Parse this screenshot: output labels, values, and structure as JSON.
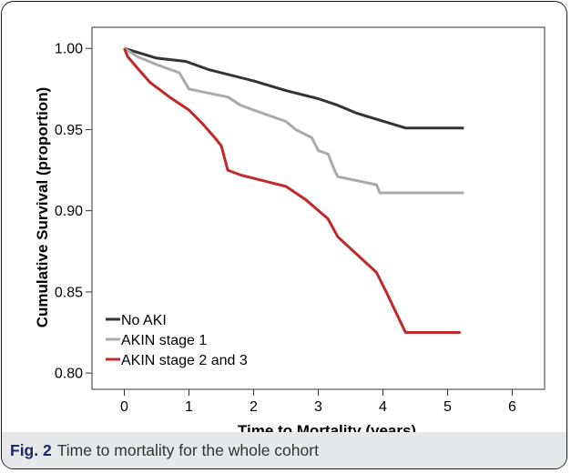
{
  "caption": {
    "label": "Fig. 2",
    "text": "Time to mortality for the whole cohort"
  },
  "chart_data": {
    "type": "line",
    "step": true,
    "xlabel": "Time to Mortality (years)",
    "ylabel": "Cumulative Survival (proportion)",
    "xlim": [
      -0.5,
      6.5
    ],
    "ylim": [
      0.79,
      1.013
    ],
    "xticks": [
      0,
      1,
      2,
      3,
      4,
      5,
      6
    ],
    "xtick_labels": [
      "0",
      "1",
      "2",
      "3",
      "4",
      "5",
      "6"
    ],
    "yticks": [
      0.8,
      0.85,
      0.9,
      0.95,
      1.0
    ],
    "ytick_labels": [
      "0.80",
      "0.85",
      "0.90",
      "0.95",
      "1.00"
    ],
    "grid": false,
    "legend_position": "bottom-left",
    "series": [
      {
        "name": "No AKI",
        "color": "#333333",
        "points": [
          [
            0,
            1.0
          ],
          [
            0.25,
            0.997
          ],
          [
            0.5,
            0.994
          ],
          [
            0.95,
            0.992
          ],
          [
            1.3,
            0.987
          ],
          [
            2.0,
            0.98
          ],
          [
            2.5,
            0.974
          ],
          [
            3.0,
            0.969
          ],
          [
            3.3,
            0.965
          ],
          [
            3.6,
            0.96
          ],
          [
            4.35,
            0.951
          ],
          [
            5.25,
            0.951
          ]
        ]
      },
      {
        "name": "AKIN stage 1",
        "color": "#aaaaaa",
        "points": [
          [
            0,
            1.0
          ],
          [
            0.2,
            0.995
          ],
          [
            0.5,
            0.99
          ],
          [
            0.85,
            0.985
          ],
          [
            1.0,
            0.975
          ],
          [
            1.6,
            0.97
          ],
          [
            1.8,
            0.965
          ],
          [
            2.0,
            0.962
          ],
          [
            2.5,
            0.955
          ],
          [
            2.65,
            0.95
          ],
          [
            2.9,
            0.945
          ],
          [
            3.0,
            0.937
          ],
          [
            3.15,
            0.935
          ],
          [
            3.25,
            0.925
          ],
          [
            3.3,
            0.921
          ],
          [
            3.9,
            0.916
          ],
          [
            3.95,
            0.911
          ],
          [
            5.25,
            0.911
          ]
        ]
      },
      {
        "name": "AKIN stage 2 and 3",
        "color": "#c0282a",
        "points": [
          [
            0,
            1.0
          ],
          [
            0.05,
            0.995
          ],
          [
            0.2,
            0.988
          ],
          [
            0.4,
            0.979
          ],
          [
            0.7,
            0.97
          ],
          [
            1.0,
            0.962
          ],
          [
            1.2,
            0.954
          ],
          [
            1.4,
            0.945
          ],
          [
            1.5,
            0.94
          ],
          [
            1.6,
            0.925
          ],
          [
            1.8,
            0.922
          ],
          [
            2.5,
            0.915
          ],
          [
            2.8,
            0.907
          ],
          [
            3.15,
            0.895
          ],
          [
            3.3,
            0.884
          ],
          [
            3.9,
            0.862
          ],
          [
            4.05,
            0.85
          ],
          [
            4.35,
            0.825
          ],
          [
            5.2,
            0.825
          ]
        ]
      }
    ]
  }
}
